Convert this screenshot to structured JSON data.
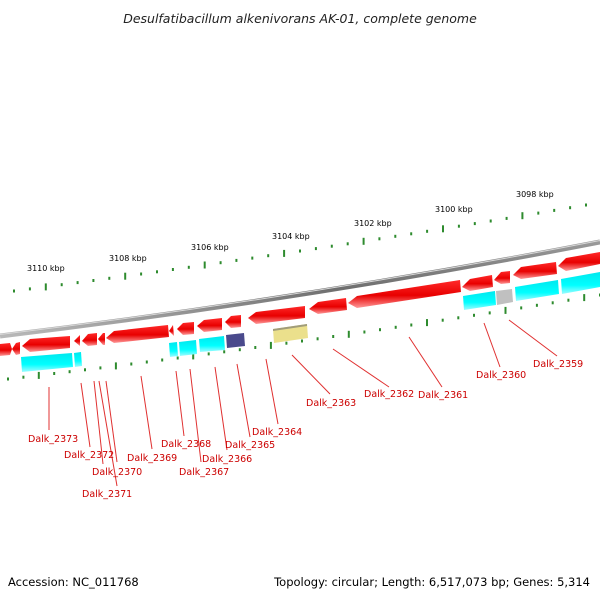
{
  "title": "Desulfatibacillum alkenivorans AK-01, complete genome",
  "footer": {
    "accession": "Accession: NC_011768",
    "topology": "Topology: circular; Length: 6,517,073 bp; Genes: 5,314"
  },
  "scale": {
    "ticks": [
      {
        "label": "3110 kbp"
      },
      {
        "label": "3108 kbp"
      },
      {
        "label": "3106 kbp"
      },
      {
        "label": "3104 kbp"
      },
      {
        "label": "3102 kbp"
      },
      {
        "label": "3100 kbp"
      },
      {
        "label": "3098 kbp"
      }
    ]
  },
  "gene_labels": [
    {
      "label": "Dalk_2373"
    },
    {
      "label": "Dalk_2372"
    },
    {
      "label": "Dalk_2370"
    },
    {
      "label": "Dalk_2371"
    },
    {
      "label": "Dalk_2369"
    },
    {
      "label": "Dalk_2368"
    },
    {
      "label": "Dalk_2367"
    },
    {
      "label": "Dalk_2366"
    },
    {
      "label": "Dalk_2365"
    },
    {
      "label": "Dalk_2364"
    },
    {
      "label": "Dalk_2363"
    },
    {
      "label": "Dalk_2362"
    },
    {
      "label": "Dalk_2361"
    },
    {
      "label": "Dalk_2360"
    },
    {
      "label": "Dalk_2359"
    }
  ],
  "colors": {
    "cds": "#ff0000",
    "cds_shadow": "#ffb0b0",
    "cyan": "#00ffff",
    "navy": "#4a4a8c",
    "khaki": "#ebe08c",
    "grey": "#c0c0c0",
    "backbone": "#808080",
    "tick": "#2e8b2e",
    "label": "#cc0000"
  }
}
